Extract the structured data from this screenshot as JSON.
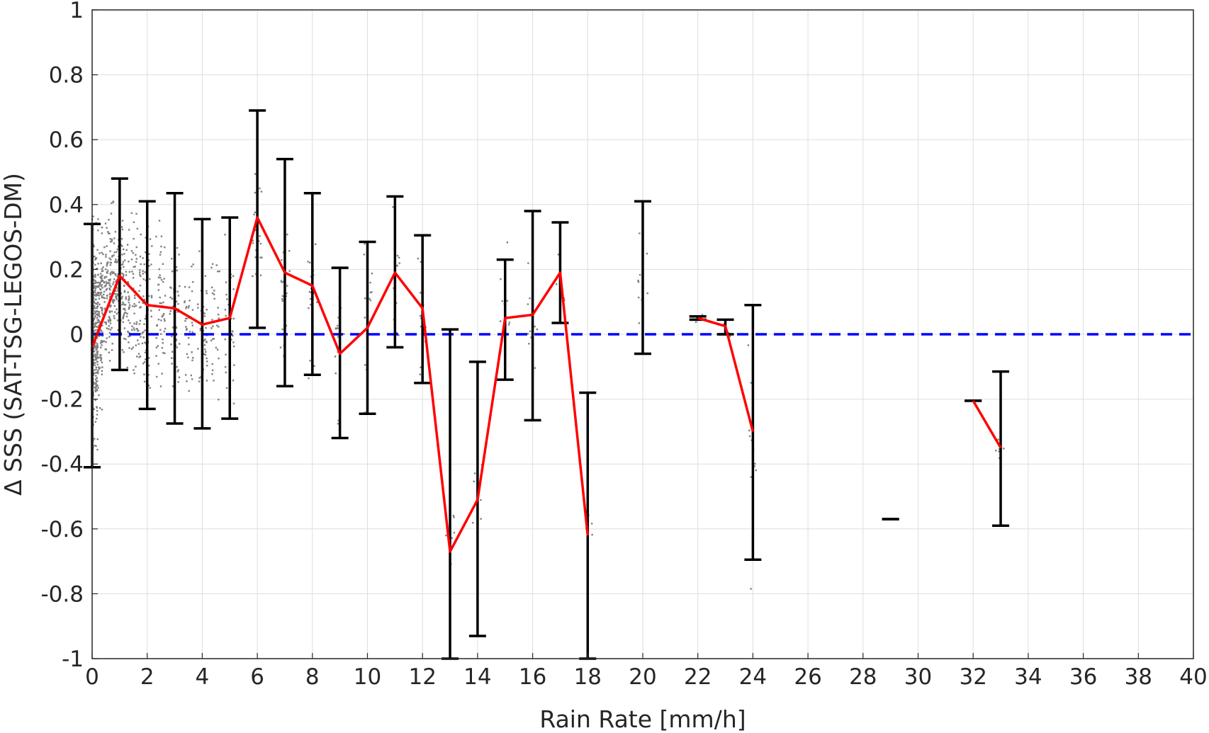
{
  "chart_data": {
    "type": "scatter",
    "xlabel": "Rain Rate [mm/h]",
    "ylabel": "Δ SSS (SAT-TSG-LEGOS-DM)",
    "xlim": [
      0,
      40
    ],
    "ylim": [
      -1,
      1
    ],
    "x_ticks": [
      "0",
      "2",
      "4",
      "6",
      "8",
      "10",
      "12",
      "14",
      "16",
      "18",
      "20",
      "22",
      "24",
      "26",
      "28",
      "30",
      "32",
      "34",
      "36",
      "38",
      "40"
    ],
    "y_ticks": [
      "1",
      "0.8",
      "0.6",
      "0.4",
      "0.2",
      "0",
      "-0.2",
      "-0.4",
      "-0.6",
      "-0.8",
      "-1"
    ],
    "grid": true,
    "reference_line": {
      "y": 0,
      "style": "dashed",
      "color": "#0000ff"
    },
    "mean_line": {
      "color": "#ff0000",
      "segments": [
        [
          [
            0,
            -0.04
          ],
          [
            1,
            0.18
          ],
          [
            2,
            0.09
          ],
          [
            3,
            0.08
          ],
          [
            4,
            0.03
          ],
          [
            5,
            0.05
          ],
          [
            6,
            0.36
          ],
          [
            7,
            0.19
          ],
          [
            8,
            0.15
          ],
          [
            9,
            -0.06
          ],
          [
            10,
            0.02
          ],
          [
            11,
            0.19
          ],
          [
            12,
            0.08
          ],
          [
            13,
            -0.67
          ],
          [
            14,
            -0.51
          ],
          [
            15,
            0.05
          ],
          [
            16,
            0.06
          ],
          [
            17,
            0.19
          ],
          [
            18,
            -0.62
          ]
        ],
        [
          [
            22,
            0.05
          ],
          [
            23,
            0.025
          ],
          [
            24,
            -0.3
          ]
        ],
        [
          [
            32,
            -0.205
          ],
          [
            33,
            -0.35
          ]
        ]
      ]
    },
    "error_bars": {
      "color": "#000000",
      "bars": [
        {
          "x": 0,
          "low": -0.41,
          "high": 0.34
        },
        {
          "x": 1,
          "low": -0.11,
          "high": 0.48
        },
        {
          "x": 2,
          "low": -0.23,
          "high": 0.41
        },
        {
          "x": 3,
          "low": -0.275,
          "high": 0.435
        },
        {
          "x": 4,
          "low": -0.29,
          "high": 0.355
        },
        {
          "x": 5,
          "low": -0.26,
          "high": 0.36
        },
        {
          "x": 6,
          "low": 0.02,
          "high": 0.69
        },
        {
          "x": 7,
          "low": -0.16,
          "high": 0.54
        },
        {
          "x": 8,
          "low": -0.125,
          "high": 0.435
        },
        {
          "x": 9,
          "low": -0.32,
          "high": 0.205
        },
        {
          "x": 10,
          "low": -0.245,
          "high": 0.285
        },
        {
          "x": 11,
          "low": -0.04,
          "high": 0.425
        },
        {
          "x": 12,
          "low": -0.15,
          "high": 0.305
        },
        {
          "x": 13,
          "low": -1.0,
          "high": 0.015
        },
        {
          "x": 14,
          "low": -0.93,
          "high": -0.085
        },
        {
          "x": 15,
          "low": -0.14,
          "high": 0.23
        },
        {
          "x": 16,
          "low": -0.265,
          "high": 0.38
        },
        {
          "x": 17,
          "low": 0.035,
          "high": 0.345
        },
        {
          "x": 18,
          "low": -1.0,
          "high": -0.18
        },
        {
          "x": 20,
          "low": -0.06,
          "high": 0.41
        },
        {
          "x": 22,
          "low": 0.045,
          "high": 0.055
        },
        {
          "x": 23,
          "low": 0.0,
          "high": 0.045
        },
        {
          "x": 24,
          "low": -0.695,
          "high": 0.09
        },
        {
          "x": 29,
          "low": -0.57,
          "high": -0.57
        },
        {
          "x": 32,
          "low": -0.205,
          "high": -0.205
        },
        {
          "x": 33,
          "low": -0.59,
          "high": -0.115
        }
      ]
    },
    "scatter": {
      "color": "#808080",
      "clusters": [
        {
          "x": 0.05,
          "center": 0.0,
          "spread": 0.28,
          "count": 240
        },
        {
          "x": 0.2,
          "center": 0.05,
          "spread": 0.2,
          "count": 160
        },
        {
          "x": 0.5,
          "center": 0.12,
          "spread": 0.18,
          "count": 110
        },
        {
          "x": 0.8,
          "center": 0.16,
          "spread": 0.18,
          "count": 95
        },
        {
          "x": 1.2,
          "center": 0.13,
          "spread": 0.18,
          "count": 85
        },
        {
          "x": 1.6,
          "center": 0.1,
          "spread": 0.2,
          "count": 70
        },
        {
          "x": 2.0,
          "center": 0.08,
          "spread": 0.22,
          "count": 60
        },
        {
          "x": 2.5,
          "center": 0.1,
          "spread": 0.2,
          "count": 55
        },
        {
          "x": 3.0,
          "center": 0.05,
          "spread": 0.23,
          "count": 50
        },
        {
          "x": 3.5,
          "center": 0.05,
          "spread": 0.2,
          "count": 40
        },
        {
          "x": 4.0,
          "center": 0.02,
          "spread": 0.22,
          "count": 40
        },
        {
          "x": 4.5,
          "center": 0.03,
          "spread": 0.2,
          "count": 30
        },
        {
          "x": 5.0,
          "center": 0.03,
          "spread": 0.22,
          "count": 30
        },
        {
          "x": 6.0,
          "center": 0.3,
          "spread": 0.2,
          "count": 22
        },
        {
          "x": 7.0,
          "center": 0.15,
          "spread": 0.22,
          "count": 22
        },
        {
          "x": 8.0,
          "center": 0.1,
          "spread": 0.22,
          "count": 22
        },
        {
          "x": 9.0,
          "center": -0.05,
          "spread": 0.2,
          "count": 16
        },
        {
          "x": 10.0,
          "center": 0.05,
          "spread": 0.2,
          "count": 14
        },
        {
          "x": 11.0,
          "center": 0.15,
          "spread": 0.15,
          "count": 12
        },
        {
          "x": 12.0,
          "center": 0.05,
          "spread": 0.2,
          "count": 12
        },
        {
          "x": 13.0,
          "center": -0.6,
          "spread": 0.1,
          "count": 8
        },
        {
          "x": 14.0,
          "center": -0.45,
          "spread": 0.1,
          "count": 6
        },
        {
          "x": 15.0,
          "center": 0.1,
          "spread": 0.12,
          "count": 8
        },
        {
          "x": 16.0,
          "center": 0.05,
          "spread": 0.2,
          "count": 10
        },
        {
          "x": 17.0,
          "center": 0.2,
          "spread": 0.1,
          "count": 6
        },
        {
          "x": 18.0,
          "center": -0.6,
          "spread": 0.05,
          "count": 4
        },
        {
          "x": 20.0,
          "center": 0.1,
          "spread": 0.15,
          "count": 10
        },
        {
          "x": 22.0,
          "center": 0.05,
          "spread": 0.02,
          "count": 4
        },
        {
          "x": 23.0,
          "center": 0.0,
          "spread": 0.04,
          "count": 4
        },
        {
          "x": 24.0,
          "center": -0.3,
          "spread": 0.35,
          "count": 12
        },
        {
          "x": 33.0,
          "center": -0.35,
          "spread": 0.04,
          "count": 6
        }
      ]
    }
  }
}
